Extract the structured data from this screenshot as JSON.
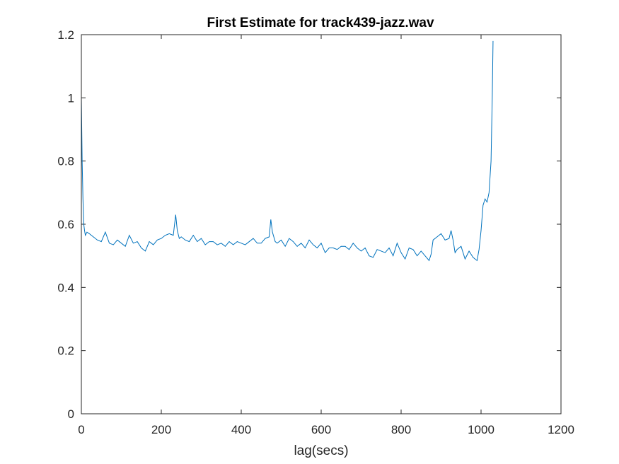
{
  "chart_data": {
    "type": "line",
    "title": "First Estimate for track439-jazz.wav",
    "xlabel": "lag(secs)",
    "ylabel": "",
    "xlim": [
      0,
      1200
    ],
    "ylim": [
      0,
      1.2
    ],
    "xticks": [
      0,
      200,
      400,
      600,
      800,
      1000,
      1200
    ],
    "xtick_labels": [
      "0",
      "200",
      "400",
      "600",
      "800",
      "1000",
      "1200"
    ],
    "yticks": [
      0,
      0.2,
      0.4,
      0.6,
      0.8,
      1,
      1.2
    ],
    "ytick_labels": [
      "0",
      "0.2",
      "0.4",
      "0.6",
      "0.8",
      "1",
      "1.2"
    ],
    "grid": false,
    "legend": "none",
    "series": [
      {
        "color": "#0072BD",
        "x": [
          0,
          2,
          4,
          6,
          8,
          10,
          14,
          20,
          30,
          40,
          50,
          60,
          70,
          80,
          90,
          100,
          110,
          120,
          130,
          140,
          150,
          160,
          170,
          180,
          190,
          200,
          210,
          220,
          230,
          236,
          240,
          245,
          250,
          260,
          270,
          280,
          290,
          300,
          310,
          320,
          330,
          340,
          350,
          360,
          370,
          380,
          390,
          400,
          410,
          420,
          430,
          440,
          450,
          460,
          470,
          474,
          478,
          485,
          490,
          500,
          510,
          520,
          530,
          540,
          550,
          560,
          570,
          580,
          590,
          600,
          610,
          620,
          630,
          640,
          650,
          660,
          670,
          680,
          690,
          700,
          710,
          720,
          730,
          740,
          750,
          760,
          770,
          780,
          790,
          800,
          810,
          820,
          830,
          840,
          850,
          860,
          870,
          875,
          880,
          890,
          900,
          910,
          920,
          925,
          930,
          935,
          940,
          950,
          960,
          970,
          980,
          990,
          995,
          1000,
          1005,
          1010,
          1015,
          1020,
          1025,
          1028,
          1030
        ],
        "y": [
          1.0,
          0.8,
          0.68,
          0.6,
          0.58,
          0.565,
          0.575,
          0.57,
          0.56,
          0.55,
          0.545,
          0.575,
          0.54,
          0.535,
          0.55,
          0.54,
          0.53,
          0.565,
          0.54,
          0.545,
          0.525,
          0.515,
          0.545,
          0.535,
          0.55,
          0.555,
          0.565,
          0.57,
          0.565,
          0.63,
          0.58,
          0.555,
          0.56,
          0.55,
          0.545,
          0.565,
          0.545,
          0.555,
          0.535,
          0.545,
          0.545,
          0.535,
          0.54,
          0.53,
          0.545,
          0.535,
          0.545,
          0.54,
          0.535,
          0.545,
          0.555,
          0.54,
          0.54,
          0.555,
          0.56,
          0.615,
          0.575,
          0.545,
          0.54,
          0.55,
          0.53,
          0.555,
          0.545,
          0.53,
          0.54,
          0.525,
          0.55,
          0.535,
          0.525,
          0.54,
          0.51,
          0.525,
          0.525,
          0.52,
          0.53,
          0.53,
          0.52,
          0.54,
          0.525,
          0.515,
          0.525,
          0.5,
          0.495,
          0.52,
          0.515,
          0.51,
          0.525,
          0.5,
          0.54,
          0.51,
          0.49,
          0.525,
          0.52,
          0.5,
          0.515,
          0.5,
          0.485,
          0.505,
          0.55,
          0.56,
          0.57,
          0.55,
          0.555,
          0.58,
          0.55,
          0.51,
          0.52,
          0.53,
          0.49,
          0.515,
          0.495,
          0.485,
          0.52,
          0.58,
          0.66,
          0.68,
          0.67,
          0.7,
          0.8,
          1.0,
          1.18
        ]
      }
    ]
  }
}
